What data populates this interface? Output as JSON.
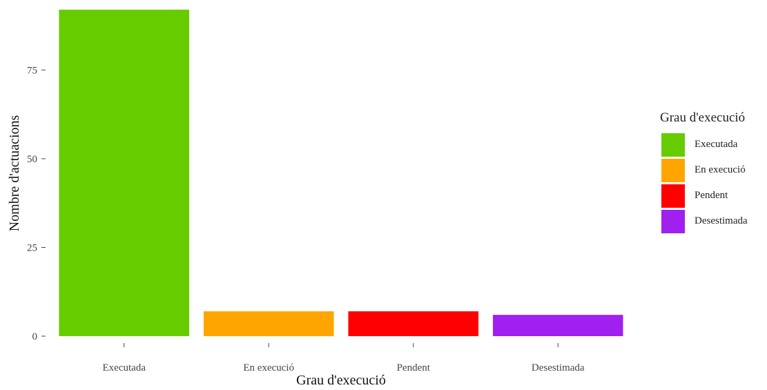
{
  "chart_data": {
    "type": "bar",
    "title": "",
    "xlabel": "Grau d'execució",
    "ylabel": "Nombre d'actuacions",
    "categories": [
      "Executada",
      "En execució",
      "Pendent",
      "Desestimada"
    ],
    "values": [
      92,
      7,
      7,
      6
    ],
    "colors": [
      "#66cc00",
      "#ffa500",
      "#ff0000",
      "#a020f0"
    ],
    "ylim": [
      0,
      92
    ],
    "yticks": [
      0,
      25,
      50,
      75
    ],
    "grid": false,
    "legend": {
      "title": "Grau d'execució",
      "position": "right",
      "items": [
        {
          "label": "Executada",
          "color": "#66cc00"
        },
        {
          "label": "En execució",
          "color": "#ffa500"
        },
        {
          "label": "Pendent",
          "color": "#ff0000"
        },
        {
          "label": "Desestimada",
          "color": "#a020f0"
        }
      ]
    }
  }
}
